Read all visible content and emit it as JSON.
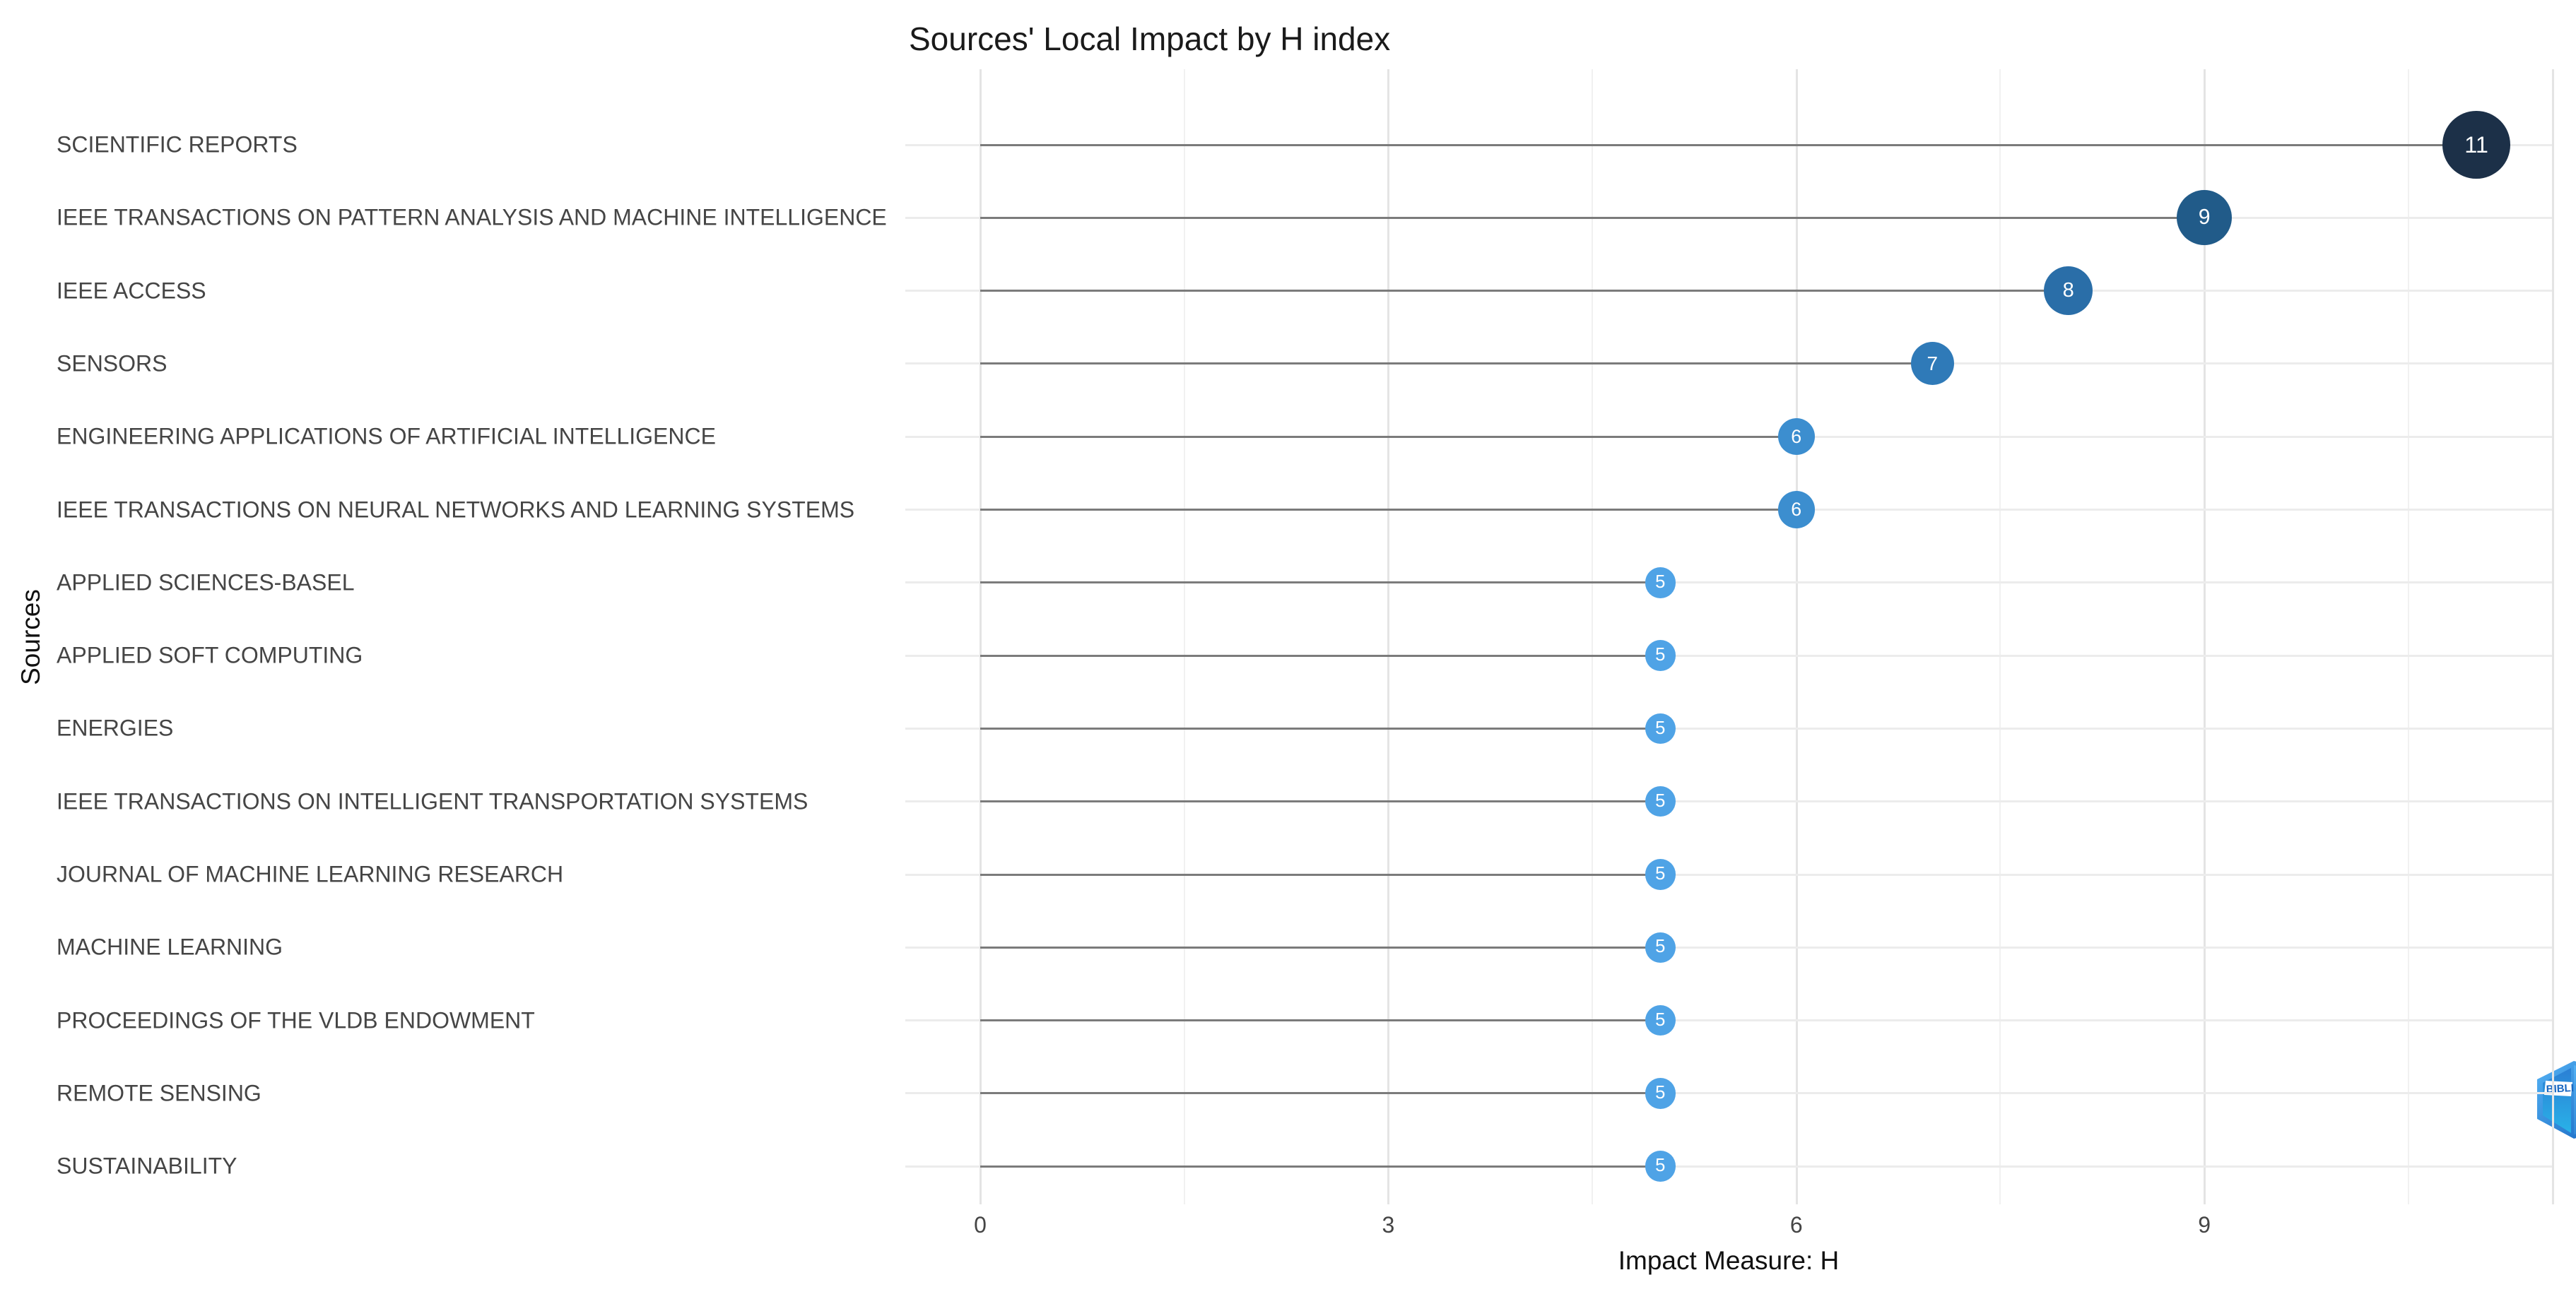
{
  "chart_data": {
    "type": "bar",
    "variant": "lollipop-horizontal",
    "title": "Sources' Local Impact by H index",
    "xlabel": "Impact Measure: H",
    "ylabel": "Sources",
    "categories": [
      "SCIENTIFIC REPORTS",
      "IEEE TRANSACTIONS ON PATTERN ANALYSIS AND MACHINE INTELLIGENCE",
      "IEEE ACCESS",
      "SENSORS",
      "ENGINEERING APPLICATIONS OF ARTIFICIAL INTELLIGENCE",
      "IEEE TRANSACTIONS ON NEURAL NETWORKS AND LEARNING SYSTEMS",
      "APPLIED SCIENCES-BASEL",
      "APPLIED SOFT COMPUTING",
      "ENERGIES",
      "IEEE TRANSACTIONS ON INTELLIGENT TRANSPORTATION SYSTEMS",
      "JOURNAL OF MACHINE LEARNING RESEARCH",
      "MACHINE LEARNING",
      "PROCEEDINGS OF THE VLDB ENDOWMENT",
      "REMOTE SENSING",
      "SUSTAINABILITY"
    ],
    "values": [
      11,
      9,
      8,
      7,
      6,
      6,
      5,
      5,
      5,
      5,
      5,
      5,
      5,
      5,
      5
    ],
    "x_ticks": [
      0,
      3,
      6,
      9
    ],
    "x_minor_ticks": [
      1.5,
      4.5,
      7.5,
      10.5
    ],
    "xlim": [
      0,
      11
    ],
    "grid": true,
    "legend": false,
    "point_colors": {
      "11": "#1c3048",
      "9": "#215b89",
      "8": "#2a6ea8",
      "7": "#2f7ab8",
      "6": "#3c8ecf",
      "5": "#4fa3e6"
    },
    "colors": {
      "stem": "#7b7b7b",
      "grid_major": "#e4e4e4",
      "grid_minor": "#f1f1f1",
      "grid_row": "#ececec",
      "label_text": "#454545",
      "dot_text": "#ffffff"
    }
  },
  "branding": {
    "watermark": "bibliometrix-logo"
  }
}
